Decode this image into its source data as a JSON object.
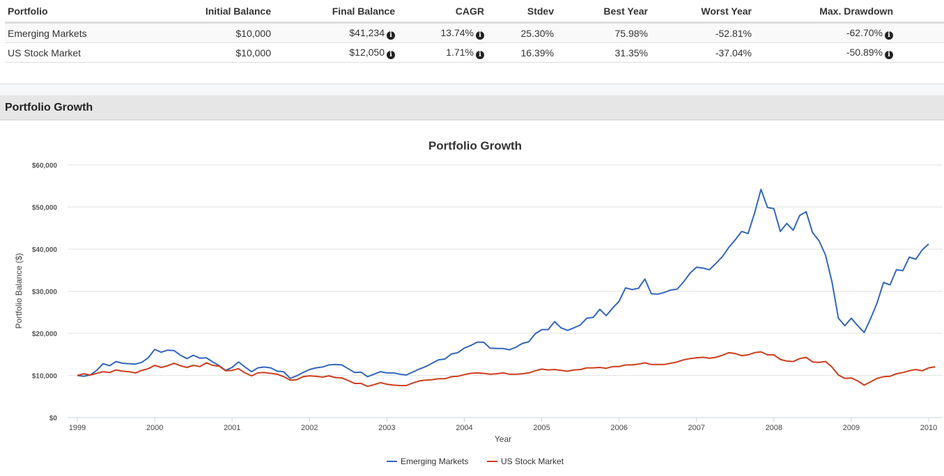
{
  "table": {
    "headers": [
      "Portfolio",
      "Initial Balance",
      "Final Balance",
      "CAGR",
      "Stdev",
      "Best Year",
      "Worst Year",
      "Max. Drawdown"
    ],
    "rows": [
      {
        "portfolio": "Emerging Markets",
        "initial_balance": "$10,000",
        "final_balance": "$41,234",
        "cagr": "13.74%",
        "stdev": "25.30%",
        "best_year": "75.98%",
        "worst_year": "-52.81%",
        "max_drawdown": "-62.70%"
      },
      {
        "portfolio": "US Stock Market",
        "initial_balance": "$10,000",
        "final_balance": "$12,050",
        "cagr": "1.71%",
        "stdev": "16.39%",
        "best_year": "31.35%",
        "worst_year": "-37.04%",
        "max_drawdown": "-50.89%"
      }
    ],
    "info_icon_glyph": "i"
  },
  "section": {
    "title": "Portfolio Growth"
  },
  "chart_data": {
    "type": "line",
    "title": "Portfolio Growth",
    "xlabel": "Year",
    "ylabel": "Portfolio Balance ($)",
    "xlim": [
      1999,
      2010
    ],
    "ylim": [
      0,
      60000
    ],
    "x_ticks": [
      "1999",
      "2000",
      "2001",
      "2002",
      "2003",
      "2004",
      "2005",
      "2006",
      "2007",
      "2008",
      "2009",
      "2010"
    ],
    "y_ticks": [
      "$0",
      "$10,000",
      "$20,000",
      "$30,000",
      "$40,000",
      "$50,000",
      "$60,000"
    ],
    "y_tick_values": [
      0,
      10000,
      20000,
      30000,
      40000,
      50000,
      60000
    ],
    "grid": true,
    "legend_position": "bottom",
    "x_start": 1999,
    "x_step_months": 1,
    "series": [
      {
        "name": "Emerging Markets",
        "color": "#3366bb",
        "values": [
          10000,
          9800,
          10100,
          11200,
          12800,
          12300,
          13300,
          12900,
          12800,
          12700,
          13100,
          14200,
          16200,
          15500,
          16000,
          15900,
          14800,
          14000,
          14800,
          14100,
          14200,
          13200,
          12300,
          11200,
          11900,
          13200,
          12000,
          10900,
          11800,
          12000,
          11800,
          11000,
          10900,
          9300,
          9900,
          10700,
          11400,
          11800,
          12000,
          12500,
          12600,
          12500,
          11600,
          10700,
          10800,
          9700,
          10300,
          10900,
          10600,
          10600,
          10300,
          10100,
          10800,
          11500,
          12100,
          12900,
          13700,
          13900,
          15100,
          15400,
          16500,
          17100,
          17900,
          17900,
          16500,
          16400,
          16400,
          16100,
          16700,
          17600,
          18000,
          19900,
          20900,
          20900,
          22800,
          21300,
          20700,
          21300,
          22000,
          23600,
          23800,
          25700,
          24200,
          26000,
          27600,
          30800,
          30400,
          30700,
          32900,
          29400,
          29300,
          29700,
          30300,
          30500,
          32200,
          34300,
          35700,
          35500,
          35100,
          36600,
          38200,
          40400,
          42200,
          44200,
          43700,
          48500,
          54200,
          49900,
          49600,
          44200,
          46100,
          44500,
          48000,
          48900,
          43900,
          42000,
          38600,
          32300,
          23600,
          21800,
          23600,
          21800,
          20200,
          23500,
          27200,
          32100,
          31500,
          35100,
          34900,
          38100,
          37600,
          39800,
          41234
        ]
      },
      {
        "name": "US Stock Market",
        "color": "#cc3d1e",
        "values": [
          10000,
          10400,
          10100,
          10500,
          10900,
          10700,
          11300,
          11000,
          10900,
          10600,
          11200,
          11600,
          12400,
          11900,
          12300,
          12900,
          12300,
          11900,
          12400,
          12100,
          13000,
          12400,
          12200,
          11100,
          11200,
          11600,
          10600,
          9900,
          10600,
          10700,
          10500,
          10300,
          9700,
          8900,
          9000,
          9700,
          9900,
          9800,
          9600,
          9900,
          9500,
          9400,
          8800,
          8100,
          8100,
          7400,
          7800,
          8300,
          7900,
          7700,
          7600,
          7600,
          8200,
          8700,
          8900,
          9000,
          9200,
          9200,
          9700,
          9800,
          10200,
          10500,
          10600,
          10500,
          10300,
          10400,
          10600,
          10300,
          10300,
          10400,
          10600,
          11100,
          11500,
          11300,
          11400,
          11200,
          11000,
          11300,
          11400,
          11800,
          11800,
          11900,
          11700,
          12100,
          12100,
          12500,
          12500,
          12700,
          13000,
          12600,
          12600,
          12600,
          12900,
          13200,
          13700,
          14000,
          14200,
          14300,
          14100,
          14300,
          14800,
          15400,
          15200,
          14700,
          14900,
          15400,
          15600,
          14900,
          14900,
          13800,
          13400,
          13300,
          14000,
          14300,
          13200,
          13100,
          13300,
          12000,
          10100,
          9300,
          9400,
          8700,
          7700,
          8500,
          9300,
          9700,
          9800,
          10400,
          10700,
          11100,
          11400,
          11100,
          11800,
          12050
        ]
      }
    ]
  }
}
